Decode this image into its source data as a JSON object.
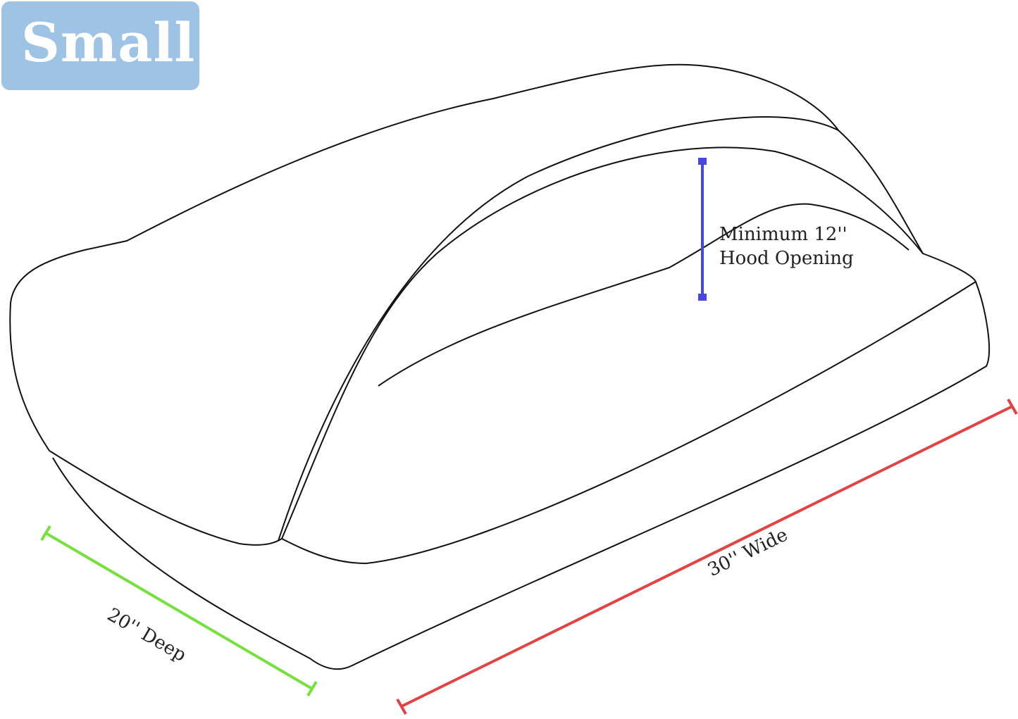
{
  "badge": {
    "label": "Small",
    "color": "#9fc3e4"
  },
  "dimensions": {
    "hood": {
      "label_line1": "Minimum 12''",
      "label_line2": "Hood Opening",
      "color": "#4646e0"
    },
    "width": {
      "label": "30'' Wide",
      "color": "#e04444"
    },
    "depth": {
      "label": "20'' Deep",
      "color": "#77e040"
    }
  }
}
